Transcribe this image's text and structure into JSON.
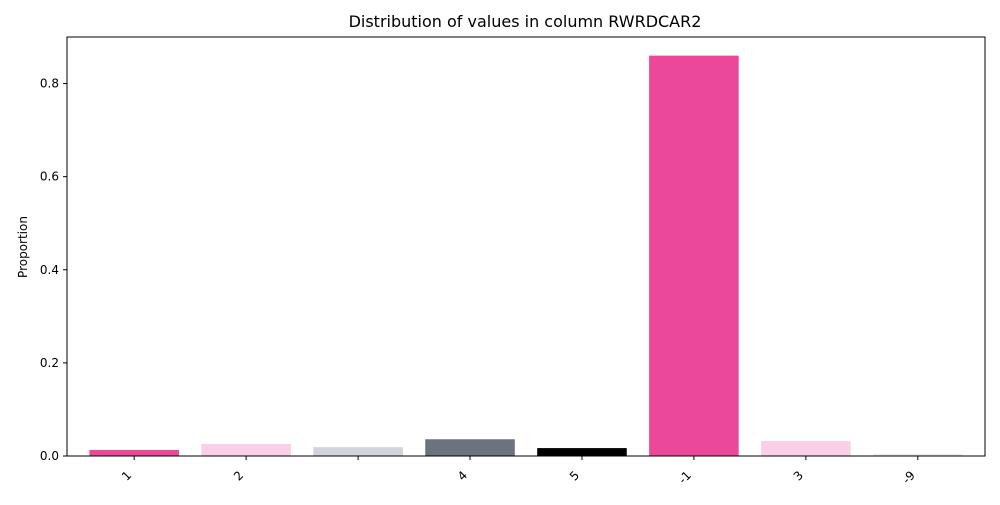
{
  "chart_data": {
    "type": "bar",
    "title": "Distribution of values in column RWRDCAR2",
    "xlabel": "",
    "ylabel": "Proportion",
    "categories": [
      "1",
      "2",
      "",
      "4",
      "5",
      "-1",
      "3",
      "-9"
    ],
    "values": [
      0.013,
      0.026,
      0.019,
      0.036,
      0.017,
      0.86,
      0.032,
      0.004
    ],
    "colors": [
      "#ec4899",
      "#fbcfe8",
      "#d1d5db",
      "#6b7280",
      "#000000",
      "#ec4899",
      "#fbcfe8",
      "#e5e7eb"
    ],
    "ylim": [
      0,
      0.9
    ],
    "yticks": [
      0.0,
      0.2,
      0.4,
      0.6,
      0.8
    ],
    "ytick_labels": [
      "0.0",
      "0.2",
      "0.4",
      "0.6",
      "0.8"
    ],
    "grid": false,
    "legend": "none"
  }
}
